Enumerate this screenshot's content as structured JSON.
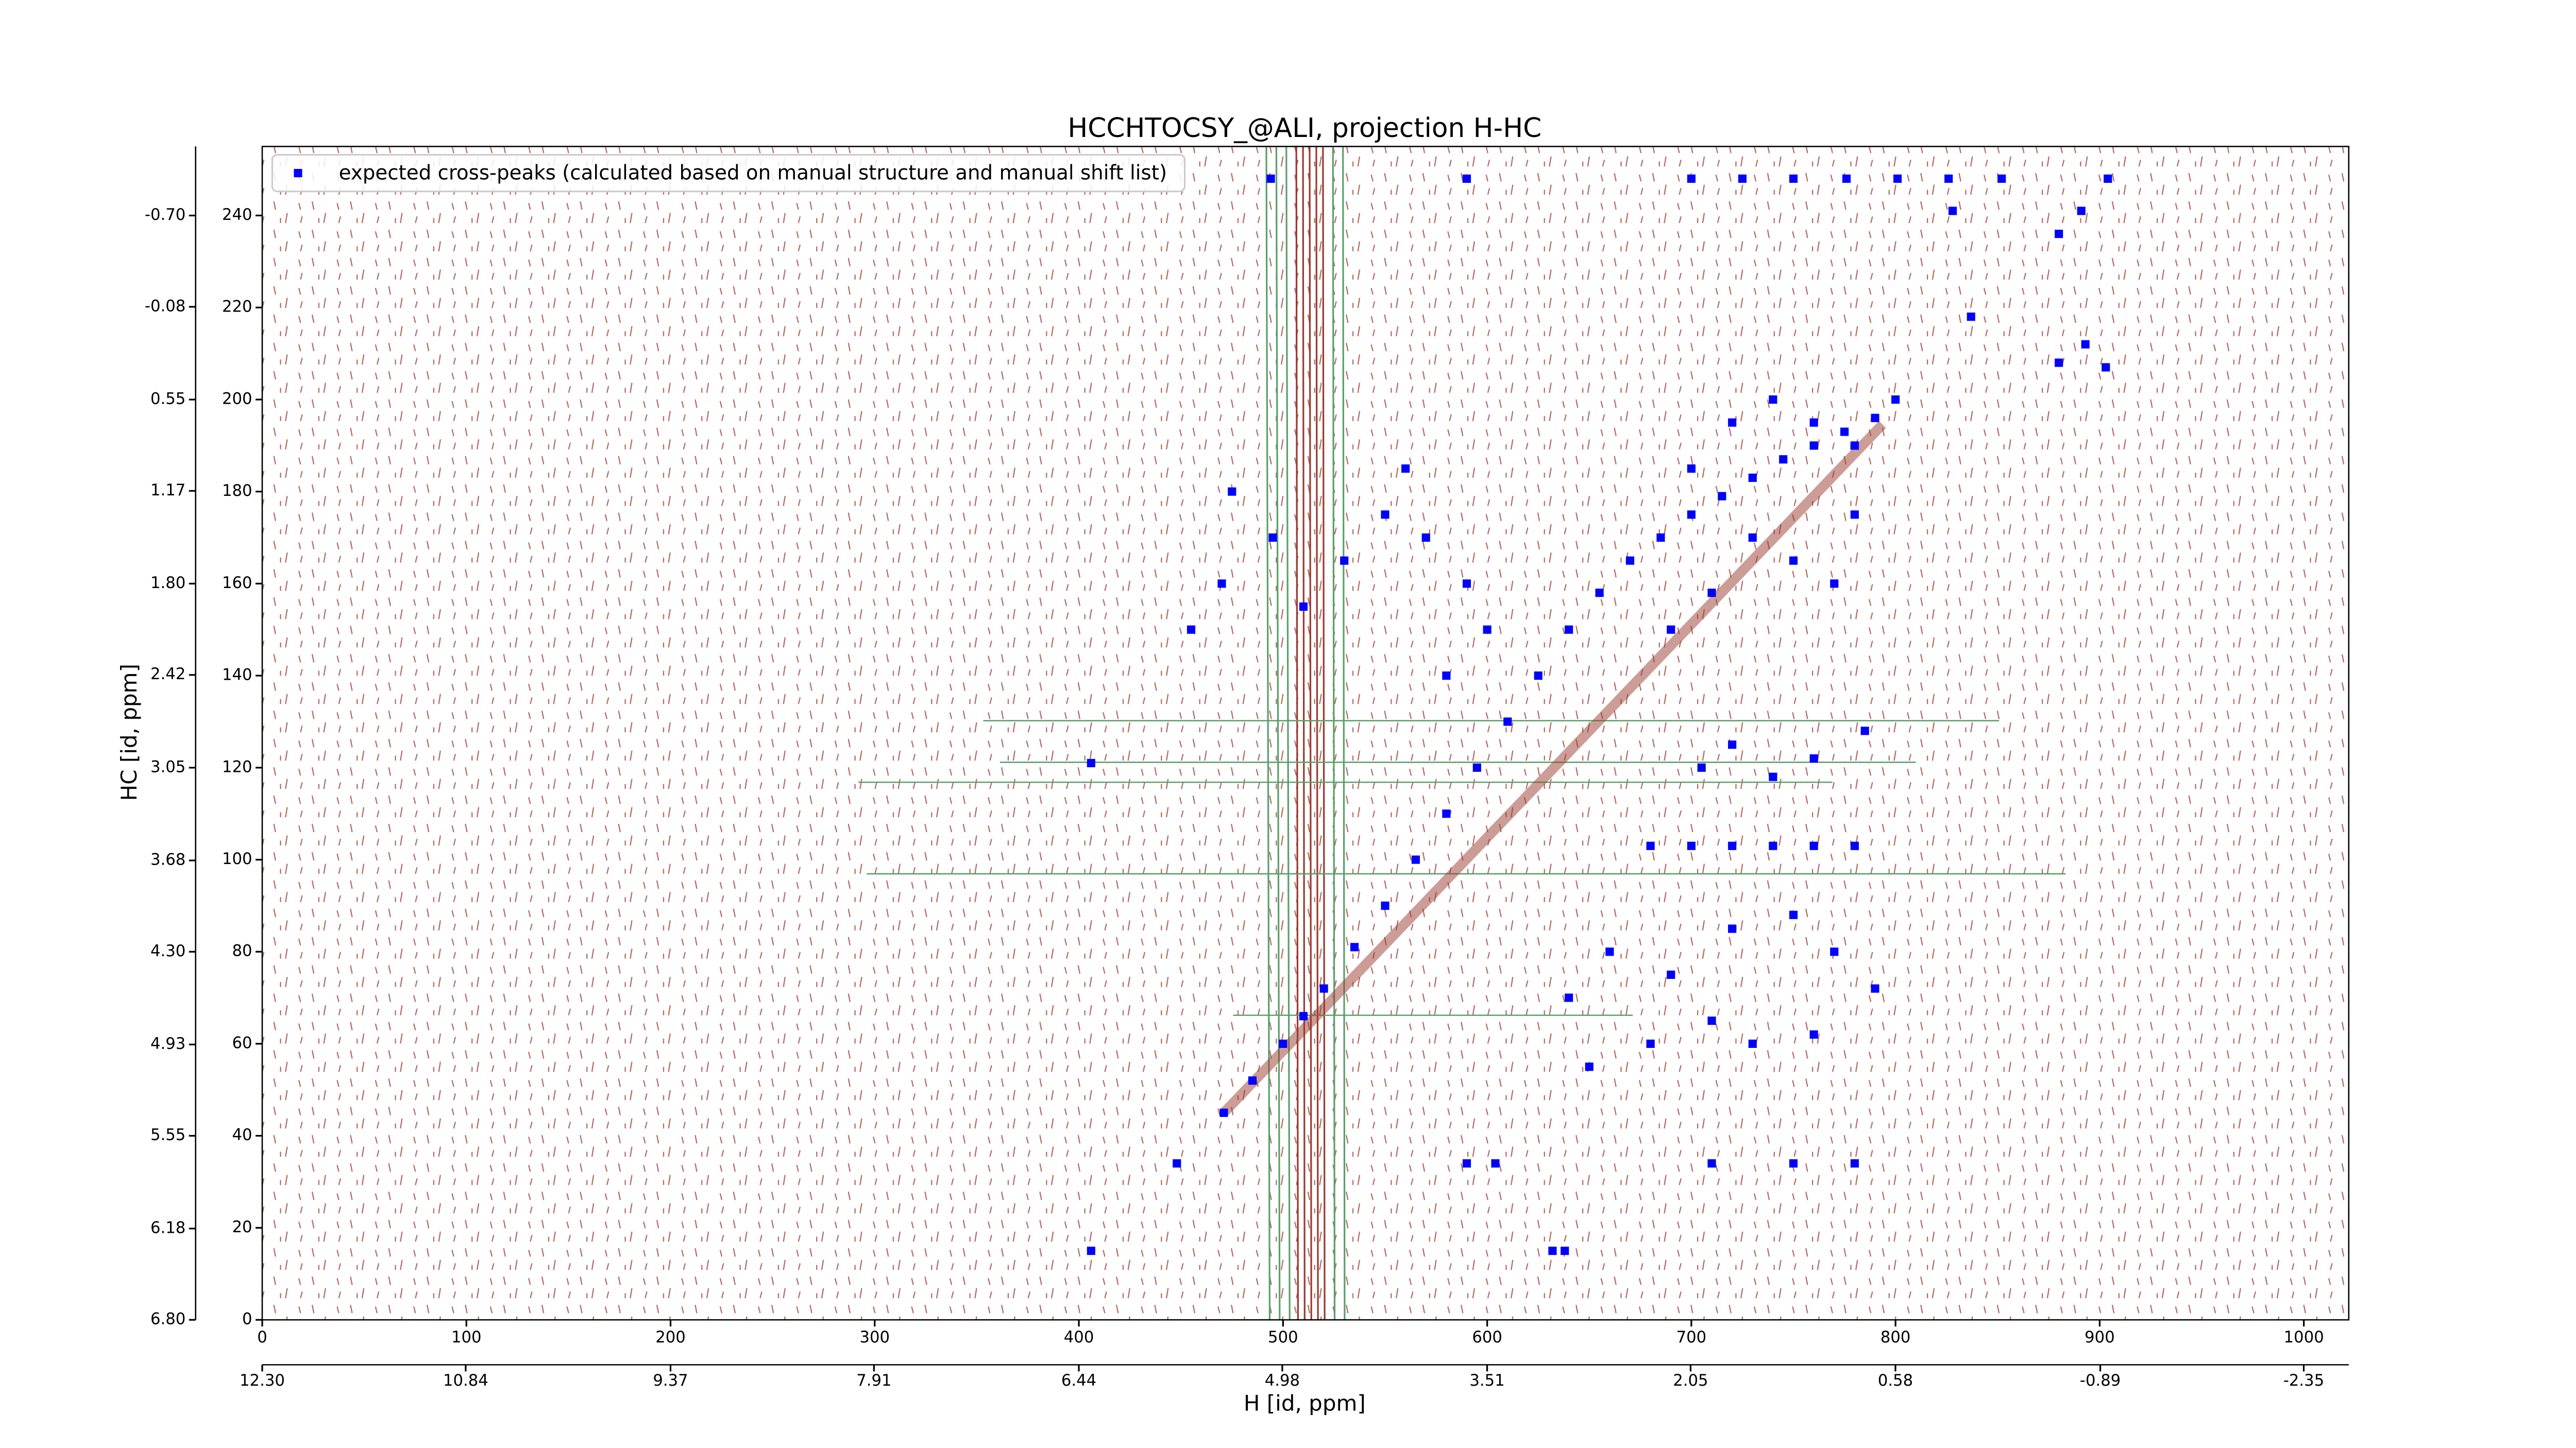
{
  "chart_data": {
    "type": "scatter",
    "title": "HCCHTOCSY_@ALI, projection H-HC",
    "xlabel": "H [id, ppm]",
    "ylabel": "HC [id, ppm]",
    "xlim": [
      0,
      1022
    ],
    "ylim": [
      0,
      255
    ],
    "xticks": [
      0,
      100,
      200,
      300,
      400,
      500,
      600,
      700,
      800,
      900,
      1000
    ],
    "yticks": [
      0,
      20,
      40,
      60,
      80,
      100,
      120,
      140,
      160,
      180,
      200,
      220,
      240
    ],
    "x2lim": [
      12.3,
      -2.673
    ],
    "x2ticks": [
      {
        "value": 12.3,
        "label": "12.30"
      },
      10.84,
      9.37,
      7.91,
      6.44,
      4.98,
      3.51,
      2.05,
      0.58,
      -0.89,
      -2.35
    ],
    "y2lim": [
      6.8,
      -1.169
    ],
    "y2ticks": [
      {
        "value": 6.8,
        "label": "6.80"
      },
      6.18,
      5.55,
      4.93,
      {
        "value": 4.3,
        "label": "4.30"
      },
      3.68,
      3.05,
      2.42,
      {
        "value": 1.8,
        "label": "1.80"
      },
      1.17,
      0.55,
      -0.08,
      {
        "value": -0.7,
        "label": "-0.70"
      }
    ],
    "legend": "upper left",
    "series": [
      {
        "name": "expected cross-peaks (calculated based on manual structure and manual shift list)",
        "color": "#0000ff",
        "marker": "square",
        "x": [
          471,
          485,
          500,
          510,
          520,
          535,
          550,
          565,
          580,
          595,
          610,
          625,
          640,
          655,
          670,
          685,
          700,
          715,
          730,
          745,
          760,
          775,
          790,
          406,
          448,
          406,
          494,
          590,
          700,
          725,
          750,
          776,
          801,
          826,
          852,
          904,
          828,
          880,
          891,
          880,
          893,
          903,
          837,
          560,
          570,
          590,
          600,
          550,
          580,
          530,
          510,
          495,
          475,
          470,
          455,
          640,
          660,
          690,
          720,
          750,
          770,
          790,
          710,
          680,
          650,
          730,
          760,
          680,
          700,
          720,
          740,
          760,
          780,
          705,
          720,
          740,
          760,
          785,
          700,
          720,
          740,
          760,
          780,
          730,
          750,
          770,
          710,
          690,
          780,
          800,
          590,
          604,
          710,
          750,
          780,
          632,
          638
        ],
        "y": [
          45,
          52,
          60,
          66,
          72,
          81,
          90,
          100,
          110,
          120,
          130,
          140,
          150,
          158,
          165,
          170,
          175,
          179,
          183,
          187,
          190,
          193,
          196,
          15,
          34,
          121,
          248,
          248,
          248,
          248,
          248,
          248,
          248,
          248,
          248,
          248,
          241,
          236,
          241,
          208,
          212,
          207,
          218,
          185,
          170,
          160,
          150,
          175,
          140,
          165,
          155,
          170,
          180,
          160,
          150,
          70,
          80,
          75,
          85,
          88,
          80,
          72,
          65,
          60,
          55,
          60,
          62,
          103,
          103,
          103,
          103,
          103,
          103,
          120,
          125,
          118,
          122,
          128,
          185,
          195,
          200,
          195,
          190,
          170,
          165,
          160,
          158,
          150,
          175,
          200,
          34,
          34,
          34,
          34,
          34,
          15,
          15
        ]
      }
    ]
  }
}
